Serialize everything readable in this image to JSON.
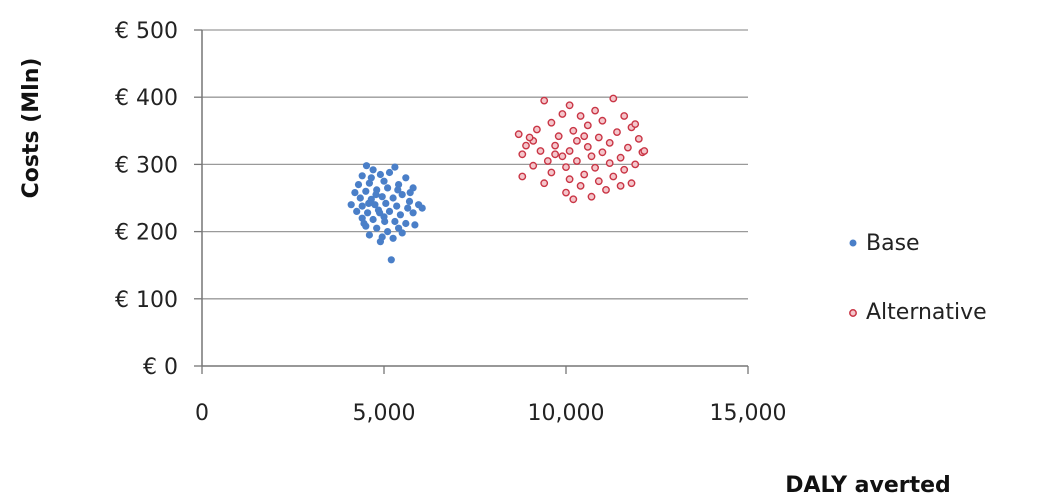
{
  "chart_data": {
    "type": "scatter",
    "title": "",
    "xlabel": "DALY averted",
    "ylabel": "Costs (Mln)",
    "xlim": [
      0,
      15000
    ],
    "ylim": [
      0,
      500
    ],
    "x_ticks": [
      0,
      5000,
      10000,
      15000
    ],
    "x_tick_labels": [
      "0",
      "5,000",
      "10,000",
      "15,000"
    ],
    "y_ticks": [
      0,
      100,
      200,
      300,
      400,
      500
    ],
    "y_tick_labels": [
      "€ 0",
      "€ 100",
      "€ 200",
      "€ 300",
      "€ 400",
      "€ 500"
    ],
    "grid": "horizontal",
    "legend_position": "right",
    "series": [
      {
        "name": "Base",
        "color": "#4a7fc8",
        "marker": "filled-circle",
        "points": [
          [
            4520,
            298
          ],
          [
            4700,
            292
          ],
          [
            5300,
            296
          ],
          [
            4400,
            283
          ],
          [
            4900,
            285
          ],
          [
            5600,
            280
          ],
          [
            4300,
            270
          ],
          [
            4600,
            272
          ],
          [
            5000,
            275
          ],
          [
            5400,
            270
          ],
          [
            5800,
            265
          ],
          [
            4200,
            258
          ],
          [
            4500,
            260
          ],
          [
            4800,
            262
          ],
          [
            5100,
            265
          ],
          [
            5500,
            255
          ],
          [
            4350,
            250
          ],
          [
            4650,
            248
          ],
          [
            4950,
            252
          ],
          [
            5250,
            250
          ],
          [
            5700,
            245
          ],
          [
            4100,
            240
          ],
          [
            4400,
            238
          ],
          [
            4750,
            240
          ],
          [
            5050,
            242
          ],
          [
            5350,
            238
          ],
          [
            5650,
            235
          ],
          [
            5950,
            240
          ],
          [
            4250,
            230
          ],
          [
            4550,
            228
          ],
          [
            4850,
            232
          ],
          [
            5150,
            230
          ],
          [
            5450,
            225
          ],
          [
            5800,
            228
          ],
          [
            6050,
            235
          ],
          [
            4400,
            220
          ],
          [
            4700,
            218
          ],
          [
            5000,
            222
          ],
          [
            5300,
            215
          ],
          [
            5600,
            212
          ],
          [
            4500,
            208
          ],
          [
            4800,
            205
          ],
          [
            5100,
            200
          ],
          [
            5400,
            205
          ],
          [
            4600,
            195
          ],
          [
            4950,
            192
          ],
          [
            5250,
            190
          ],
          [
            5500,
            198
          ],
          [
            4900,
            185
          ],
          [
            5200,
            158
          ],
          [
            4450,
            212
          ],
          [
            5850,
            210
          ],
          [
            4650,
            280
          ],
          [
            5150,
            288
          ],
          [
            4780,
            255
          ],
          [
            5020,
            215
          ],
          [
            5380,
            262
          ],
          [
            4580,
            242
          ],
          [
            5720,
            258
          ],
          [
            4880,
            228
          ]
        ]
      },
      {
        "name": "Alternative",
        "color": "#c93545",
        "marker": "open-circle",
        "points": [
          [
            9400,
            395
          ],
          [
            11300,
            398
          ],
          [
            10100,
            388
          ],
          [
            10800,
            380
          ],
          [
            9900,
            375
          ],
          [
            11600,
            372
          ],
          [
            10400,
            372
          ],
          [
            11000,
            365
          ],
          [
            9600,
            362
          ],
          [
            10600,
            358
          ],
          [
            11800,
            355
          ],
          [
            9200,
            352
          ],
          [
            10200,
            350
          ],
          [
            11400,
            348
          ],
          [
            8700,
            345
          ],
          [
            9800,
            342
          ],
          [
            10900,
            340
          ],
          [
            12000,
            338
          ],
          [
            9100,
            335
          ],
          [
            10300,
            335
          ],
          [
            11200,
            332
          ],
          [
            8900,
            328
          ],
          [
            9700,
            328
          ],
          [
            10600,
            326
          ],
          [
            11700,
            325
          ],
          [
            9300,
            320
          ],
          [
            10100,
            320
          ],
          [
            11000,
            318
          ],
          [
            12100,
            318
          ],
          [
            8800,
            315
          ],
          [
            9900,
            312
          ],
          [
            10700,
            312
          ],
          [
            11500,
            310
          ],
          [
            9500,
            305
          ],
          [
            10300,
            305
          ],
          [
            11200,
            302
          ],
          [
            11900,
            300
          ],
          [
            9100,
            298
          ],
          [
            10000,
            296
          ],
          [
            10800,
            295
          ],
          [
            11600,
            292
          ],
          [
            9600,
            288
          ],
          [
            10500,
            285
          ],
          [
            11300,
            282
          ],
          [
            8800,
            282
          ],
          [
            10100,
            278
          ],
          [
            10900,
            275
          ],
          [
            11800,
            272
          ],
          [
            9400,
            272
          ],
          [
            10400,
            268
          ],
          [
            11100,
            262
          ],
          [
            10000,
            258
          ],
          [
            11500,
            268
          ],
          [
            10200,
            248
          ],
          [
            10700,
            252
          ],
          [
            12150,
            320
          ],
          [
            9000,
            340
          ],
          [
            11900,
            360
          ],
          [
            10500,
            342
          ],
          [
            9700,
            315
          ]
        ]
      }
    ]
  }
}
